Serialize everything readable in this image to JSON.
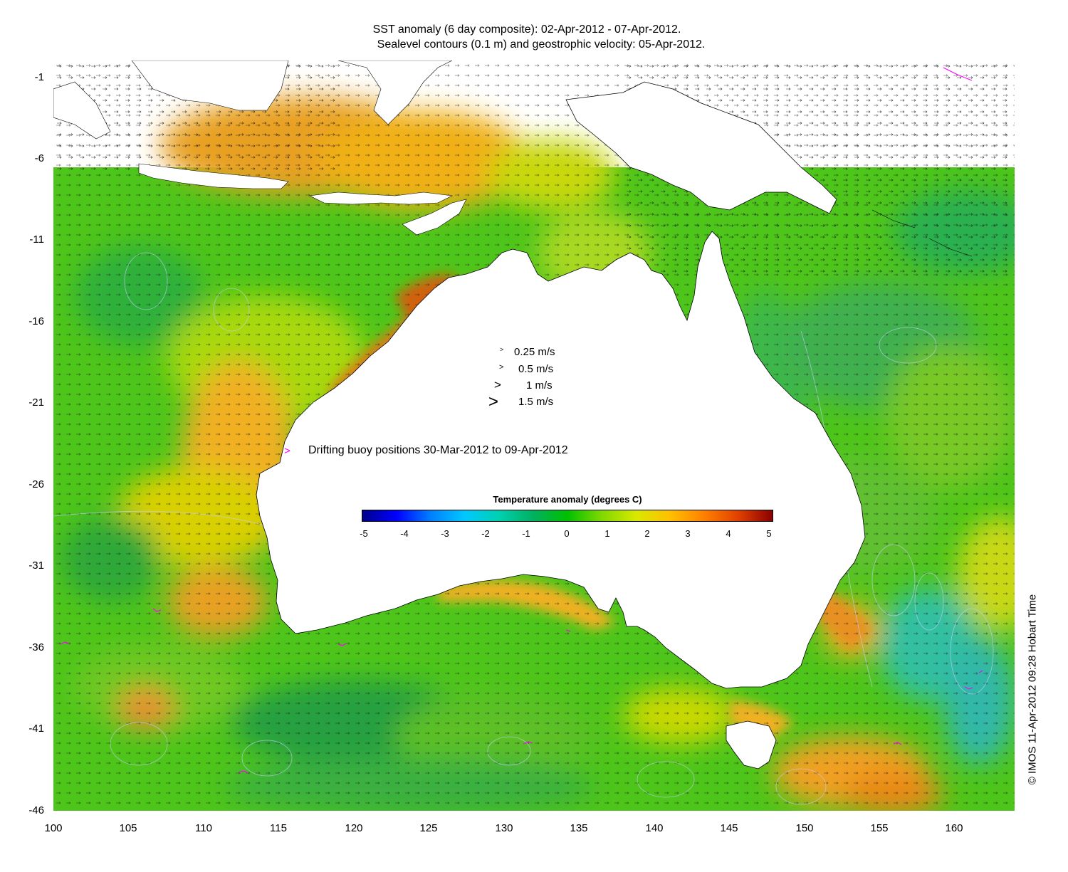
{
  "title": {
    "line1": "SST anomaly (6 day composite): 02-Apr-2012 - 07-Apr-2012.",
    "line2": "Sealevel contours (0.1 m) and geostrophic velocity: 05-Apr-2012."
  },
  "axes": {
    "y_ticks": [
      "-1",
      "-6",
      "-11",
      "-16",
      "-21",
      "-26",
      "-31",
      "-36",
      "-41",
      "-46"
    ],
    "x_ticks": [
      "100",
      "105",
      "110",
      "115",
      "120",
      "125",
      "130",
      "135",
      "140",
      "145",
      "150",
      "155",
      "160"
    ],
    "lon_range": [
      100,
      164
    ],
    "lat_range": [
      -46,
      -0.5
    ]
  },
  "velocity_legend": [
    {
      "symbol": ">",
      "label": "0.25 m/s"
    },
    {
      "symbol": ">",
      "label": "0.5 m/s"
    },
    {
      "symbol": ">",
      "label": "1 m/s"
    },
    {
      "symbol": ">",
      "label": "1.5 m/s"
    }
  ],
  "buoy_legend": {
    "symbol": ">",
    "label": "Drifting buoy positions 30-Mar-2012 to 09-Apr-2012",
    "color": "#ff00ff"
  },
  "colorbar": {
    "title": "Temperature anomaly (degrees C)",
    "ticks": [
      "-5",
      "-4",
      "-3",
      "-2",
      "-1",
      "0",
      "1",
      "2",
      "3",
      "4",
      "5"
    ],
    "range": [
      -5,
      5
    ],
    "colors": [
      "#00008b",
      "#0000ff",
      "#0080ff",
      "#00c8ff",
      "#00d0b0",
      "#00b060",
      "#00c000",
      "#80d800",
      "#d8e800",
      "#ffc000",
      "#ff8000",
      "#e04000",
      "#8b0000"
    ]
  },
  "credit": "© IMOS 11-Apr-2012 09:28 Hobart Time",
  "colors": {
    "land": "#ffffff",
    "ocean_base": "#4ec51a",
    "warm_anomaly": "#f0a820",
    "hot_anomaly": "#e07010",
    "cool_anomaly": "#2ec0a0",
    "buoy": "#ff00ff"
  }
}
